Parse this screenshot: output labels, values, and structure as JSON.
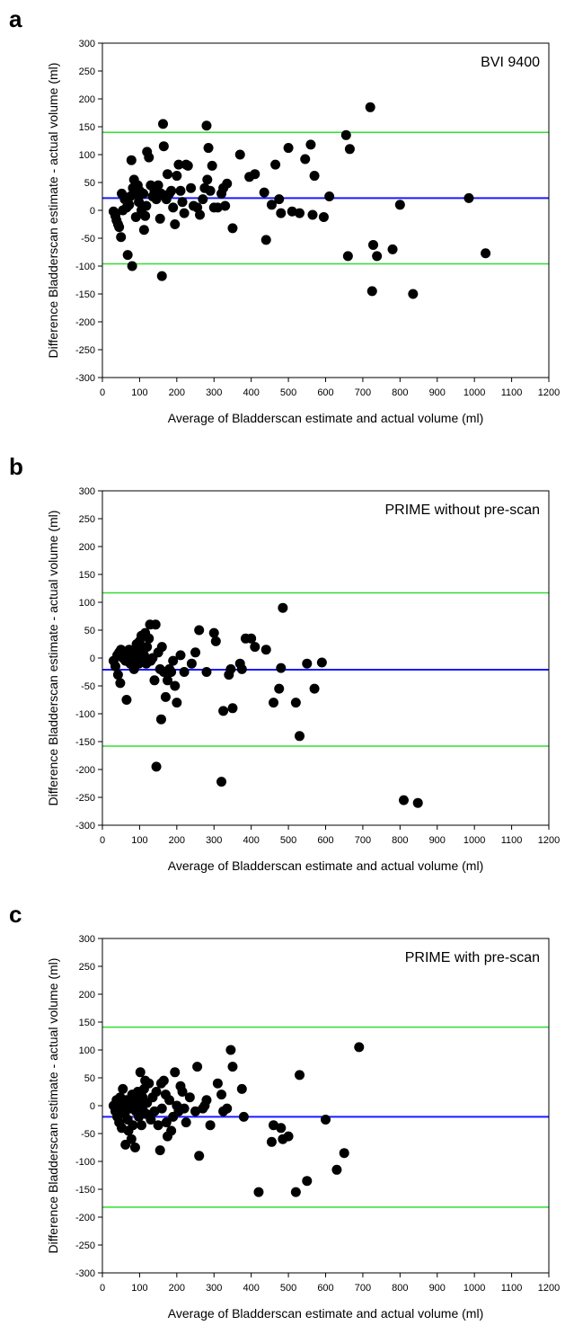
{
  "chart_data": [
    {
      "type": "scatter",
      "panel_label": "a",
      "title": "BVI 9400",
      "xlabel": "Average of  Bladderscan estimate and actual volume (ml)",
      "ylabel": "Difference Bladderscan estimate - actual volume (ml)",
      "xlim": [
        0,
        1200
      ],
      "ylim": [
        -300,
        300
      ],
      "xticks": [
        "0",
        "100",
        "200",
        "300",
        "400",
        "500",
        "600",
        "700",
        "800",
        "900",
        "1000",
        "1100",
        "1200"
      ],
      "yticks": [
        "300",
        "250",
        "200",
        "150",
        "100",
        "50",
        "0",
        "-50",
        "-100",
        "-150",
        "-200",
        "-250",
        "-300"
      ],
      "grid": false,
      "ref_lines": {
        "mean": 22,
        "upper": 140,
        "lower": -96,
        "mean_color": "#1a1aff",
        "limit_color": "#33dd33"
      },
      "points": [
        [
          30,
          -2
        ],
        [
          35,
          -10
        ],
        [
          38,
          -18
        ],
        [
          42,
          -25
        ],
        [
          45,
          -30
        ],
        [
          50,
          -48
        ],
        [
          52,
          30
        ],
        [
          55,
          0
        ],
        [
          60,
          20
        ],
        [
          65,
          5
        ],
        [
          68,
          -80
        ],
        [
          72,
          10
        ],
        [
          75,
          25
        ],
        [
          78,
          90
        ],
        [
          80,
          -100
        ],
        [
          82,
          40
        ],
        [
          85,
          55
        ],
        [
          88,
          35
        ],
        [
          90,
          -12
        ],
        [
          92,
          28
        ],
        [
          95,
          45
        ],
        [
          98,
          15
        ],
        [
          100,
          35
        ],
        [
          105,
          0
        ],
        [
          108,
          5
        ],
        [
          110,
          30
        ],
        [
          112,
          -35
        ],
        [
          115,
          -10
        ],
        [
          118,
          8
        ],
        [
          120,
          105
        ],
        [
          125,
          95
        ],
        [
          130,
          45
        ],
        [
          135,
          25
        ],
        [
          140,
          35
        ],
        [
          145,
          20
        ],
        [
          150,
          45
        ],
        [
          155,
          -15
        ],
        [
          158,
          30
        ],
        [
          160,
          -118
        ],
        [
          163,
          155
        ],
        [
          165,
          115
        ],
        [
          168,
          25
        ],
        [
          172,
          20
        ],
        [
          175,
          65
        ],
        [
          180,
          30
        ],
        [
          185,
          35
        ],
        [
          190,
          5
        ],
        [
          195,
          -25
        ],
        [
          200,
          62
        ],
        [
          205,
          82
        ],
        [
          210,
          35
        ],
        [
          215,
          15
        ],
        [
          220,
          -5
        ],
        [
          225,
          82
        ],
        [
          230,
          80
        ],
        [
          238,
          40
        ],
        [
          245,
          8
        ],
        [
          255,
          5
        ],
        [
          262,
          -8
        ],
        [
          270,
          20
        ],
        [
          275,
          40
        ],
        [
          280,
          152
        ],
        [
          282,
          55
        ],
        [
          285,
          112
        ],
        [
          290,
          35
        ],
        [
          295,
          80
        ],
        [
          300,
          5
        ],
        [
          310,
          5
        ],
        [
          320,
          30
        ],
        [
          325,
          40
        ],
        [
          330,
          8
        ],
        [
          335,
          48
        ],
        [
          350,
          -32
        ],
        [
          370,
          100
        ],
        [
          395,
          60
        ],
        [
          410,
          65
        ],
        [
          435,
          32
        ],
        [
          440,
          -53
        ],
        [
          455,
          10
        ],
        [
          465,
          82
        ],
        [
          475,
          20
        ],
        [
          480,
          -5
        ],
        [
          500,
          112
        ],
        [
          510,
          -2
        ],
        [
          530,
          -5
        ],
        [
          545,
          92
        ],
        [
          560,
          118
        ],
        [
          565,
          -8
        ],
        [
          570,
          62
        ],
        [
          595,
          -12
        ],
        [
          610,
          25
        ],
        [
          655,
          135
        ],
        [
          660,
          -82
        ],
        [
          665,
          110
        ],
        [
          720,
          185
        ],
        [
          725,
          -145
        ],
        [
          728,
          -62
        ],
        [
          738,
          -82
        ],
        [
          780,
          -70
        ],
        [
          800,
          10
        ],
        [
          835,
          -150
        ],
        [
          985,
          22
        ],
        [
          1030,
          -77
        ]
      ]
    },
    {
      "type": "scatter",
      "panel_label": "b",
      "title": "PRIME without pre-scan",
      "xlabel": "Average of  Bladderscan estimate and actual volume (ml)",
      "ylabel": "Difference Bladderscan estimate - actual volume (ml)",
      "xlim": [
        0,
        1200
      ],
      "ylim": [
        -300,
        300
      ],
      "xticks": [
        "0",
        "100",
        "200",
        "300",
        "400",
        "500",
        "600",
        "700",
        "800",
        "900",
        "1000",
        "1100",
        "1200"
      ],
      "yticks": [
        "300",
        "250",
        "200",
        "150",
        "100",
        "50",
        "0",
        "-50",
        "-100",
        "-150",
        "-200",
        "-250",
        "-300"
      ],
      "grid": false,
      "ref_lines": {
        "mean": -21,
        "upper": 117,
        "lower": -158,
        "mean_color": "#1a1aff",
        "limit_color": "#33dd33"
      },
      "points": [
        [
          30,
          -5
        ],
        [
          35,
          -15
        ],
        [
          40,
          5
        ],
        [
          42,
          -30
        ],
        [
          45,
          10
        ],
        [
          48,
          -45
        ],
        [
          50,
          15
        ],
        [
          55,
          0
        ],
        [
          58,
          10
        ],
        [
          62,
          -5
        ],
        [
          65,
          -75
        ],
        [
          70,
          5
        ],
        [
          72,
          15
        ],
        [
          75,
          -10
        ],
        [
          78,
          0
        ],
        [
          82,
          5
        ],
        [
          85,
          -20
        ],
        [
          88,
          15
        ],
        [
          90,
          -5
        ],
        [
          92,
          25
        ],
        [
          95,
          10
        ],
        [
          98,
          -10
        ],
        [
          100,
          30
        ],
        [
          102,
          0
        ],
        [
          105,
          40
        ],
        [
          108,
          -5
        ],
        [
          110,
          15
        ],
        [
          112,
          5
        ],
        [
          115,
          45
        ],
        [
          118,
          -10
        ],
        [
          120,
          20
        ],
        [
          125,
          35
        ],
        [
          128,
          60
        ],
        [
          130,
          -5
        ],
        [
          135,
          0
        ],
        [
          140,
          -40
        ],
        [
          143,
          60
        ],
        [
          145,
          -195
        ],
        [
          150,
          10
        ],
        [
          155,
          -20
        ],
        [
          158,
          -110
        ],
        [
          160,
          20
        ],
        [
          165,
          -25
        ],
        [
          170,
          -70
        ],
        [
          175,
          -40
        ],
        [
          180,
          -20
        ],
        [
          185,
          -25
        ],
        [
          190,
          -5
        ],
        [
          195,
          -50
        ],
        [
          200,
          -80
        ],
        [
          210,
          5
        ],
        [
          220,
          -25
        ],
        [
          240,
          -10
        ],
        [
          250,
          10
        ],
        [
          260,
          50
        ],
        [
          280,
          -25
        ],
        [
          300,
          45
        ],
        [
          305,
          30
        ],
        [
          320,
          -222
        ],
        [
          325,
          -95
        ],
        [
          340,
          -30
        ],
        [
          345,
          -20
        ],
        [
          350,
          -90
        ],
        [
          370,
          -10
        ],
        [
          375,
          -20
        ],
        [
          385,
          35
        ],
        [
          400,
          35
        ],
        [
          410,
          20
        ],
        [
          440,
          15
        ],
        [
          460,
          -80
        ],
        [
          475,
          -55
        ],
        [
          480,
          -18
        ],
        [
          485,
          90
        ],
        [
          520,
          -80
        ],
        [
          530,
          -140
        ],
        [
          550,
          -10
        ],
        [
          570,
          -55
        ],
        [
          590,
          -8
        ],
        [
          810,
          -255
        ],
        [
          848,
          -260
        ]
      ]
    },
    {
      "type": "scatter",
      "panel_label": "c",
      "title": "PRIME with pre-scan",
      "xlabel": "Average of  Bladderscan estimate and actual volume (ml)",
      "ylabel": "Difference Bladderscan estimate - actual volume (ml)",
      "xlim": [
        0,
        1200
      ],
      "ylim": [
        -300,
        300
      ],
      "xticks": [
        "0",
        "100",
        "200",
        "300",
        "400",
        "500",
        "600",
        "700",
        "800",
        "900",
        "1000",
        "1100",
        "1200"
      ],
      "yticks": [
        "300",
        "250",
        "200",
        "150",
        "100",
        "50",
        "0",
        "-50",
        "-100",
        "-150",
        "-200",
        "-250",
        "-300"
      ],
      "grid": false,
      "ref_lines": {
        "mean": -20,
        "upper": 141,
        "lower": -182,
        "mean_color": "#1a1aff",
        "limit_color": "#33dd33"
      },
      "points": [
        [
          30,
          0
        ],
        [
          35,
          -10
        ],
        [
          38,
          10
        ],
        [
          40,
          -20
        ],
        [
          42,
          5
        ],
        [
          45,
          -30
        ],
        [
          48,
          15
        ],
        [
          50,
          -5
        ],
        [
          52,
          -40
        ],
        [
          55,
          30
        ],
        [
          58,
          0
        ],
        [
          60,
          -15
        ],
        [
          62,
          -70
        ],
        [
          65,
          10
        ],
        [
          68,
          -25
        ],
        [
          70,
          -45
        ],
        [
          72,
          5
        ],
        [
          75,
          -5
        ],
        [
          78,
          -60
        ],
        [
          80,
          20
        ],
        [
          82,
          -35
        ],
        [
          85,
          0
        ],
        [
          88,
          -75
        ],
        [
          90,
          -10
        ],
        [
          92,
          10
        ],
        [
          95,
          25
        ],
        [
          98,
          -20
        ],
        [
          100,
          0
        ],
        [
          102,
          60
        ],
        [
          105,
          -35
        ],
        [
          108,
          15
        ],
        [
          110,
          -10
        ],
        [
          112,
          30
        ],
        [
          115,
          45
        ],
        [
          118,
          -15
        ],
        [
          120,
          5
        ],
        [
          125,
          40
        ],
        [
          130,
          -25
        ],
        [
          135,
          15
        ],
        [
          140,
          -10
        ],
        [
          145,
          25
        ],
        [
          150,
          -35
        ],
        [
          155,
          -80
        ],
        [
          158,
          40
        ],
        [
          160,
          -5
        ],
        [
          165,
          45
        ],
        [
          170,
          20
        ],
        [
          172,
          -30
        ],
        [
          175,
          -55
        ],
        [
          180,
          10
        ],
        [
          185,
          -45
        ],
        [
          190,
          -20
        ],
        [
          195,
          60
        ],
        [
          200,
          0
        ],
        [
          205,
          -10
        ],
        [
          210,
          35
        ],
        [
          215,
          25
        ],
        [
          220,
          -5
        ],
        [
          225,
          -30
        ],
        [
          235,
          15
        ],
        [
          250,
          -10
        ],
        [
          255,
          70
        ],
        [
          260,
          -90
        ],
        [
          270,
          -5
        ],
        [
          275,
          0
        ],
        [
          280,
          10
        ],
        [
          290,
          -35
        ],
        [
          310,
          40
        ],
        [
          320,
          20
        ],
        [
          325,
          -10
        ],
        [
          335,
          -5
        ],
        [
          345,
          100
        ],
        [
          350,
          70
        ],
        [
          375,
          30
        ],
        [
          380,
          -20
        ],
        [
          420,
          -155
        ],
        [
          455,
          -65
        ],
        [
          460,
          -35
        ],
        [
          480,
          -40
        ],
        [
          485,
          -60
        ],
        [
          500,
          -55
        ],
        [
          520,
          -155
        ],
        [
          530,
          55
        ],
        [
          550,
          -135
        ],
        [
          600,
          -25
        ],
        [
          630,
          -115
        ],
        [
          650,
          -85
        ],
        [
          690,
          105
        ]
      ]
    }
  ]
}
